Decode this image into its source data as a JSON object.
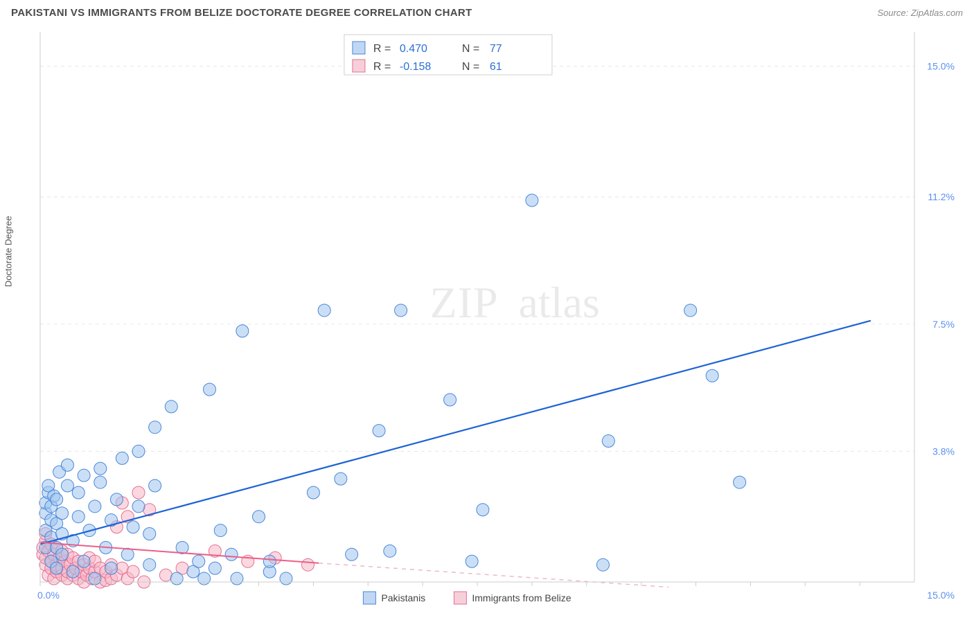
{
  "header": {
    "title": "PAKISTANI VS IMMIGRANTS FROM BELIZE DOCTORATE DEGREE CORRELATION CHART",
    "source": "Source: ZipAtlas.com"
  },
  "ylabel": "Doctorate Degree",
  "watermark": {
    "a": "ZIP",
    "b": "atlas"
  },
  "chart": {
    "type": "scatter",
    "xlim": [
      0,
      16
    ],
    "ylim": [
      0,
      16
    ],
    "grid_y": [
      3.8,
      7.5,
      11.2,
      15.0
    ],
    "grid_labels": [
      "3.8%",
      "7.5%",
      "11.2%",
      "15.0%"
    ],
    "x_start_label": "0.0%",
    "x_end_label": "15.0%",
    "x_ticks": [
      0,
      1,
      2,
      3,
      4,
      5,
      6,
      7,
      8,
      9,
      10,
      11,
      12,
      13,
      14,
      15
    ],
    "grid_color": "#e6e6e6",
    "axis_color": "#cccccc",
    "background": "#ffffff",
    "point_radius": 9,
    "series": [
      {
        "name": "Pakistanis",
        "color_fill": "#9ec4ef",
        "color_stroke": "#4a86d8",
        "R": "0.470",
        "N": "77",
        "trend": {
          "x1": 0,
          "y1": 1.1,
          "x2": 15.2,
          "y2": 7.6,
          "color": "#1b63d6"
        },
        "points": [
          [
            0.1,
            1.0
          ],
          [
            0.1,
            1.5
          ],
          [
            0.1,
            2.0
          ],
          [
            0.1,
            2.3
          ],
          [
            0.15,
            2.6
          ],
          [
            0.15,
            2.8
          ],
          [
            0.2,
            0.6
          ],
          [
            0.2,
            1.3
          ],
          [
            0.2,
            1.8
          ],
          [
            0.2,
            2.2
          ],
          [
            0.25,
            2.5
          ],
          [
            0.3,
            0.4
          ],
          [
            0.3,
            1.0
          ],
          [
            0.3,
            1.7
          ],
          [
            0.3,
            2.4
          ],
          [
            0.35,
            3.2
          ],
          [
            0.4,
            0.8
          ],
          [
            0.4,
            1.4
          ],
          [
            0.4,
            2.0
          ],
          [
            0.5,
            2.8
          ],
          [
            0.5,
            3.4
          ],
          [
            0.6,
            0.3
          ],
          [
            0.6,
            1.2
          ],
          [
            0.7,
            1.9
          ],
          [
            0.7,
            2.6
          ],
          [
            0.8,
            3.1
          ],
          [
            0.8,
            0.6
          ],
          [
            0.9,
            1.5
          ],
          [
            1.0,
            2.2
          ],
          [
            1.0,
            0.1
          ],
          [
            1.1,
            2.9
          ],
          [
            1.1,
            3.3
          ],
          [
            1.2,
            1.0
          ],
          [
            1.3,
            1.8
          ],
          [
            1.3,
            0.4
          ],
          [
            1.4,
            2.4
          ],
          [
            1.5,
            3.6
          ],
          [
            1.6,
            0.8
          ],
          [
            1.7,
            1.6
          ],
          [
            1.8,
            2.2
          ],
          [
            1.8,
            3.8
          ],
          [
            2.0,
            0.5
          ],
          [
            2.0,
            1.4
          ],
          [
            2.1,
            2.8
          ],
          [
            2.1,
            4.5
          ],
          [
            2.4,
            5.1
          ],
          [
            2.5,
            0.1
          ],
          [
            2.6,
            1.0
          ],
          [
            2.8,
            0.3
          ],
          [
            2.9,
            0.6
          ],
          [
            3.0,
            0.1
          ],
          [
            3.1,
            5.6
          ],
          [
            3.2,
            0.4
          ],
          [
            3.3,
            1.5
          ],
          [
            3.5,
            0.8
          ],
          [
            3.6,
            0.1
          ],
          [
            3.7,
            7.3
          ],
          [
            4.0,
            1.9
          ],
          [
            4.2,
            0.3
          ],
          [
            4.2,
            0.6
          ],
          [
            4.5,
            0.1
          ],
          [
            5.0,
            2.6
          ],
          [
            5.2,
            7.9
          ],
          [
            5.5,
            3.0
          ],
          [
            5.7,
            0.8
          ],
          [
            6.2,
            4.4
          ],
          [
            6.4,
            0.9
          ],
          [
            6.6,
            7.9
          ],
          [
            7.5,
            5.3
          ],
          [
            7.9,
            0.6
          ],
          [
            8.1,
            2.1
          ],
          [
            9.0,
            11.1
          ],
          [
            10.3,
            0.5
          ],
          [
            10.4,
            4.1
          ],
          [
            11.9,
            7.9
          ],
          [
            12.3,
            6.0
          ],
          [
            12.8,
            2.9
          ]
        ]
      },
      {
        "name": "Immigrants from Belize",
        "color_fill": "#f7b8c7",
        "color_stroke": "#e36f94",
        "R": "-0.158",
        "N": "61",
        "trend_solid": {
          "x1": 0,
          "y1": 1.15,
          "x2": 5.1,
          "y2": 0.55,
          "color": "#ec5f88"
        },
        "trend_dash": {
          "x1": 5.1,
          "y1": 0.55,
          "x2": 11.5,
          "y2": -0.15,
          "color": "#eeb8c6"
        },
        "points": [
          [
            0.05,
            0.8
          ],
          [
            0.05,
            1.0
          ],
          [
            0.1,
            0.5
          ],
          [
            0.1,
            0.7
          ],
          [
            0.1,
            1.2
          ],
          [
            0.1,
            1.4
          ],
          [
            0.15,
            0.2
          ],
          [
            0.15,
            0.9
          ],
          [
            0.2,
            0.4
          ],
          [
            0.2,
            0.6
          ],
          [
            0.2,
            1.1
          ],
          [
            0.25,
            0.1
          ],
          [
            0.25,
            0.8
          ],
          [
            0.3,
            0.3
          ],
          [
            0.3,
            0.5
          ],
          [
            0.3,
            1.0
          ],
          [
            0.35,
            0.7
          ],
          [
            0.4,
            0.2
          ],
          [
            0.4,
            0.4
          ],
          [
            0.4,
            0.9
          ],
          [
            0.45,
            0.6
          ],
          [
            0.5,
            0.1
          ],
          [
            0.5,
            0.3
          ],
          [
            0.5,
            0.8
          ],
          [
            0.55,
            0.5
          ],
          [
            0.6,
            0.2
          ],
          [
            0.6,
            0.7
          ],
          [
            0.65,
            0.4
          ],
          [
            0.7,
            0.1
          ],
          [
            0.7,
            0.6
          ],
          [
            0.75,
            0.3
          ],
          [
            0.8,
            0.0
          ],
          [
            0.8,
            0.5
          ],
          [
            0.85,
            0.2
          ],
          [
            0.9,
            0.4
          ],
          [
            0.9,
            0.7
          ],
          [
            0.95,
            0.1
          ],
          [
            1.0,
            0.3
          ],
          [
            1.0,
            0.6
          ],
          [
            1.1,
            0.0
          ],
          [
            1.1,
            0.4
          ],
          [
            1.2,
            0.05
          ],
          [
            1.2,
            0.3
          ],
          [
            1.3,
            0.5
          ],
          [
            1.3,
            0.1
          ],
          [
            1.4,
            1.6
          ],
          [
            1.4,
            0.2
          ],
          [
            1.5,
            2.3
          ],
          [
            1.5,
            0.4
          ],
          [
            1.6,
            1.9
          ],
          [
            1.6,
            0.1
          ],
          [
            1.7,
            0.3
          ],
          [
            1.8,
            2.6
          ],
          [
            1.9,
            0.0
          ],
          [
            2.0,
            2.1
          ],
          [
            2.3,
            0.2
          ],
          [
            2.6,
            0.4
          ],
          [
            3.2,
            0.9
          ],
          [
            3.8,
            0.6
          ],
          [
            4.3,
            0.7
          ],
          [
            4.9,
            0.5
          ]
        ]
      }
    ]
  },
  "stats_box": {
    "rows": [
      {
        "swatch": "blue",
        "R_label": "R =",
        "R_val": "0.470",
        "N_label": "N =",
        "N_val": "77"
      },
      {
        "swatch": "pink",
        "R_label": "R =",
        "R_val": "-0.158",
        "N_label": "N =",
        "N_val": "61"
      }
    ]
  },
  "legend": {
    "items": [
      {
        "swatch": "blue",
        "label": "Pakistanis"
      },
      {
        "swatch": "pink",
        "label": "Immigrants from Belize"
      }
    ]
  }
}
